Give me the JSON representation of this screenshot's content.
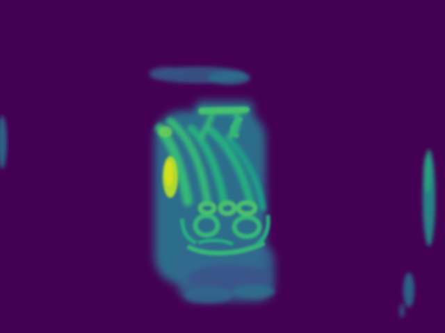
{
  "image": {
    "colormap": "viridis",
    "colors": {
      "background": "#440154",
      "low": "#3b528b",
      "mid_low": "#2c728e",
      "mid": "#21918c",
      "mid_high": "#35b779",
      "high": "#90d743",
      "peak": "#d2e21b"
    }
  }
}
